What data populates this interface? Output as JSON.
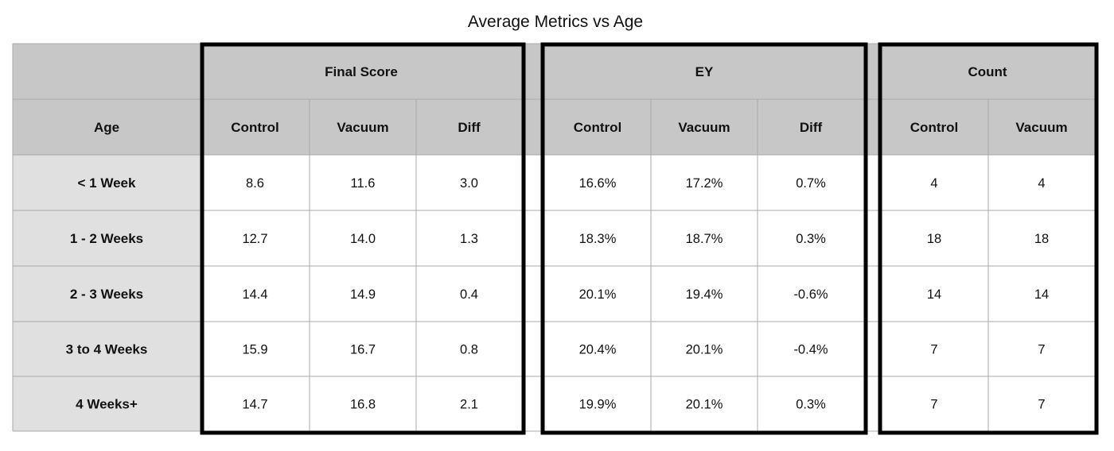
{
  "chart_data": {
    "type": "table",
    "title": "Average Metrics vs Age",
    "groups": [
      {
        "name": "Final Score",
        "columns": [
          "Control",
          "Vacuum",
          "Diff"
        ]
      },
      {
        "name": "EY",
        "columns": [
          "Control",
          "Vacuum",
          "Diff"
        ]
      },
      {
        "name": "Count",
        "columns": [
          "Control",
          "Vacuum"
        ]
      }
    ],
    "row_header": "Age",
    "rows": [
      {
        "label": "< 1 Week",
        "values": [
          "8.6",
          "11.6",
          "3.0",
          "16.6%",
          "17.2%",
          "0.7%",
          "4",
          "4"
        ]
      },
      {
        "label": "1 - 2 Weeks",
        "values": [
          "12.7",
          "14.0",
          "1.3",
          "18.3%",
          "18.7%",
          "0.3%",
          "18",
          "18"
        ]
      },
      {
        "label": "2 - 3 Weeks",
        "values": [
          "14.4",
          "14.9",
          "0.4",
          "20.1%",
          "19.4%",
          "-0.6%",
          "14",
          "14"
        ]
      },
      {
        "label": "3 to 4 Weeks",
        "values": [
          "15.9",
          "16.7",
          "0.8",
          "20.4%",
          "20.1%",
          "-0.4%",
          "7",
          "7"
        ]
      },
      {
        "label": "4 Weeks+",
        "values": [
          "14.7",
          "16.8",
          "2.1",
          "19.9%",
          "20.1%",
          "0.3%",
          "7",
          "7"
        ]
      }
    ],
    "colors": {
      "header_fill": "#c7c7c7",
      "row_label_fill": "#e0e0e0",
      "cell_fill": "#ffffff",
      "grid": "#a8a8a8",
      "group_border": "#000000"
    }
  }
}
